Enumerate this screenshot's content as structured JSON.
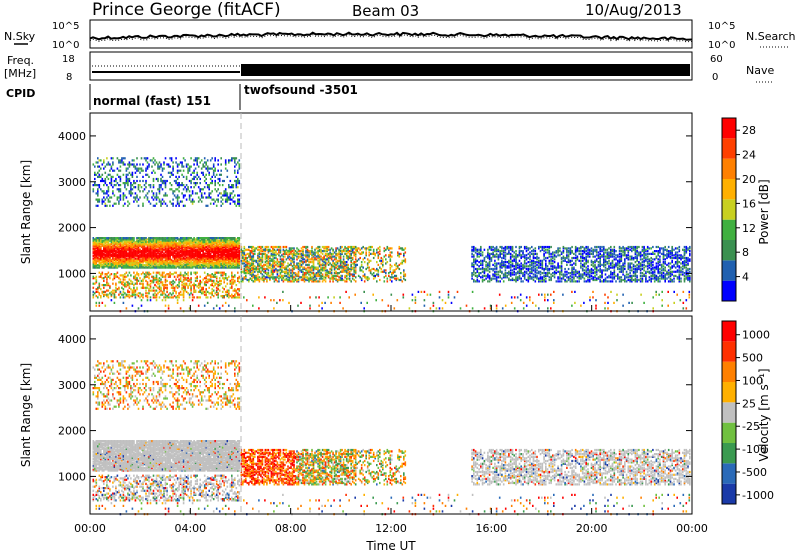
{
  "header": {
    "station": "Prince George (fitACF)",
    "beam": "Beam 03",
    "date": "10/Aug/2013"
  },
  "left_labels": {
    "nsky": "N.Sky",
    "freq_line1": "Freq.",
    "freq_line2": "[MHz]",
    "cpid": "CPID"
  },
  "right_labels": {
    "nsearch": "N.Search",
    "nave": "Nave"
  },
  "ticks": {
    "noise_top": "10^5",
    "noise_bottom": "10^0",
    "freq_top": "18",
    "freq_bottom": "8",
    "nave_top": "60",
    "nave_bottom": "0"
  },
  "cpid_modes": [
    {
      "label": "normal (fast) 151",
      "start": "00:00",
      "end": "06:00"
    },
    {
      "label": "twofsound -3501",
      "start": "06:00",
      "end": "24:00"
    }
  ],
  "colors": {
    "power_scale": [
      "#0000ff",
      "#2060b0",
      "#3a9050",
      "#40b040",
      "#c8d020",
      "#ffb000",
      "#ff8000",
      "#ff4000",
      "#ff0000"
    ],
    "velocity_scale": [
      "#1a3aa8",
      "#2a6ab8",
      "#3a9a50",
      "#70c040",
      "#c0c0c0",
      "#ffb000",
      "#ff8000",
      "#ff3000",
      "#ff0000"
    ],
    "ground_scatter": "#c0c0c0"
  },
  "chart_data": [
    {
      "type": "heatmap",
      "name": "power",
      "xlabel": "",
      "ylabel": "Slant Range [km]",
      "ylim": [
        180,
        4500
      ],
      "yticks": [
        "1000",
        "2000",
        "3000",
        "4000"
      ],
      "colorbar_label": "Power [dB]",
      "colorbar_ticks": [
        "4",
        "8",
        "12",
        "16",
        "20",
        "24",
        "28"
      ],
      "colorbar_range": [
        0,
        30
      ]
    },
    {
      "type": "heatmap",
      "name": "velocity",
      "xlabel": "Time UT",
      "ylabel": "Slant Range [km]",
      "ylim": [
        180,
        4500
      ],
      "yticks": [
        "1000",
        "2000",
        "3000",
        "4000"
      ],
      "xticks": [
        "00:00",
        "04:00",
        "08:00",
        "12:00",
        "16:00",
        "20:00",
        "00:00"
      ],
      "colorbar_label": "Velocity [m s⁻¹]",
      "colorbar_ticks": [
        "1000",
        "500",
        "100",
        "25",
        "-25",
        "-100",
        "-500",
        "-1000"
      ]
    }
  ]
}
